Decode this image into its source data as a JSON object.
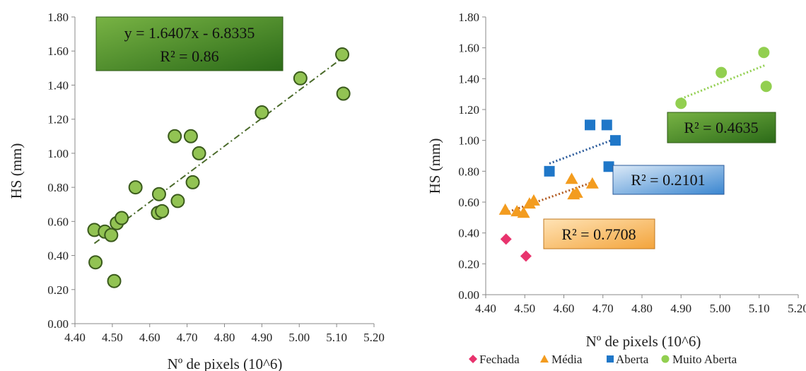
{
  "chart_data": [
    {
      "type": "scatter",
      "xlabel": "Nº de pixels (10^6)",
      "ylabel": "HS (mm)",
      "xlim": [
        4.4,
        5.2
      ],
      "ylim": [
        0.0,
        1.8
      ],
      "xticks": [
        "4.40",
        "4.50",
        "4.60",
        "4.70",
        "4.80",
        "4.90",
        "5.00",
        "5.10",
        "5.20"
      ],
      "yticks": [
        "0.00",
        "0.20",
        "0.40",
        "0.60",
        "0.80",
        "1.00",
        "1.20",
        "1.40",
        "1.60",
        "1.80"
      ],
      "points": [
        [
          4.452,
          0.55
        ],
        [
          4.455,
          0.36
        ],
        [
          4.48,
          0.54
        ],
        [
          4.497,
          0.52
        ],
        [
          4.505,
          0.25
        ],
        [
          4.512,
          0.59
        ],
        [
          4.525,
          0.62
        ],
        [
          4.562,
          0.8
        ],
        [
          4.622,
          0.65
        ],
        [
          4.625,
          0.76
        ],
        [
          4.633,
          0.66
        ],
        [
          4.667,
          1.1
        ],
        [
          4.675,
          0.72
        ],
        [
          4.71,
          1.1
        ],
        [
          4.715,
          0.83
        ],
        [
          4.732,
          1.0
        ],
        [
          4.9,
          1.24
        ],
        [
          5.003,
          1.44
        ],
        [
          5.115,
          1.58
        ],
        [
          5.118,
          1.35
        ]
      ],
      "trendline": {
        "slope": 1.6407,
        "intercept": -6.8335,
        "x_range": [
          4.452,
          5.115
        ]
      },
      "annotation": {
        "line1": "y = 1.6407x  - 6.8335",
        "line2": "R² = 0.86"
      },
      "colors": {
        "marker_fill": "#92c353",
        "marker_edge": "#3a5a1c",
        "trend": "#4a6a2a",
        "box_light": "#6aa636",
        "box_dark": "#2e6b1a"
      }
    },
    {
      "type": "scatter",
      "xlabel": "Nº de pixels (10^6)",
      "ylabel": "HS (mm)",
      "xlim": [
        4.4,
        5.2
      ],
      "ylim": [
        0.0,
        1.8
      ],
      "xticks": [
        "4.40",
        "4.50",
        "4.60",
        "4.70",
        "4.80",
        "4.90",
        "5.00",
        "5.10",
        "5.20"
      ],
      "yticks": [
        "0.00",
        "0.20",
        "0.40",
        "0.60",
        "0.80",
        "1.00",
        "1.20",
        "1.40",
        "1.60",
        "1.80"
      ],
      "series": [
        {
          "name": "Fechada",
          "marker": "diamond",
          "color": "#e8336d",
          "points": [
            [
              4.452,
              0.36
            ],
            [
              4.503,
              0.25
            ]
          ]
        },
        {
          "name": "Média",
          "marker": "triangle",
          "color": "#f39c1f",
          "points": [
            [
              4.45,
              0.55
            ],
            [
              4.48,
              0.54
            ],
            [
              4.497,
              0.53
            ],
            [
              4.512,
              0.59
            ],
            [
              4.523,
              0.61
            ],
            [
              4.62,
              0.75
            ],
            [
              4.625,
              0.65
            ],
            [
              4.633,
              0.66
            ],
            [
              4.673,
              0.72
            ]
          ],
          "trend": {
            "x": [
              4.45,
              4.675
            ],
            "y": [
              0.53,
              0.73
            ],
            "color": "#b0581e"
          },
          "r2_label": "R² = 0.7708",
          "r2_colors": [
            "#ffd9a0",
            "#f3a43c"
          ]
        },
        {
          "name": "Aberta",
          "marker": "square",
          "color": "#1f77c8",
          "points": [
            [
              4.563,
              0.8
            ],
            [
              4.667,
              1.1
            ],
            [
              4.71,
              1.1
            ],
            [
              4.715,
              0.83
            ],
            [
              4.732,
              1.0
            ]
          ],
          "trend": {
            "x": [
              4.563,
              4.732
            ],
            "y": [
              0.85,
              1.01
            ],
            "color": "#2a5a9a"
          },
          "r2_label": "R² = 0.2101",
          "r2_colors": [
            "#c8ddf2",
            "#3a86d0"
          ]
        },
        {
          "name": "Muito Aberta",
          "marker": "circle",
          "color": "#92cf50",
          "points": [
            [
              4.9,
              1.24
            ],
            [
              5.003,
              1.44
            ],
            [
              5.112,
              1.57
            ],
            [
              5.118,
              1.35
            ]
          ],
          "trend": {
            "x": [
              4.9,
              5.118
            ],
            "y": [
              1.27,
              1.49
            ],
            "color": "#92cf50"
          },
          "r2_label": "R² = 0.4635",
          "r2_colors": [
            "#6aa636",
            "#2e6b1a"
          ]
        }
      ]
    }
  ]
}
